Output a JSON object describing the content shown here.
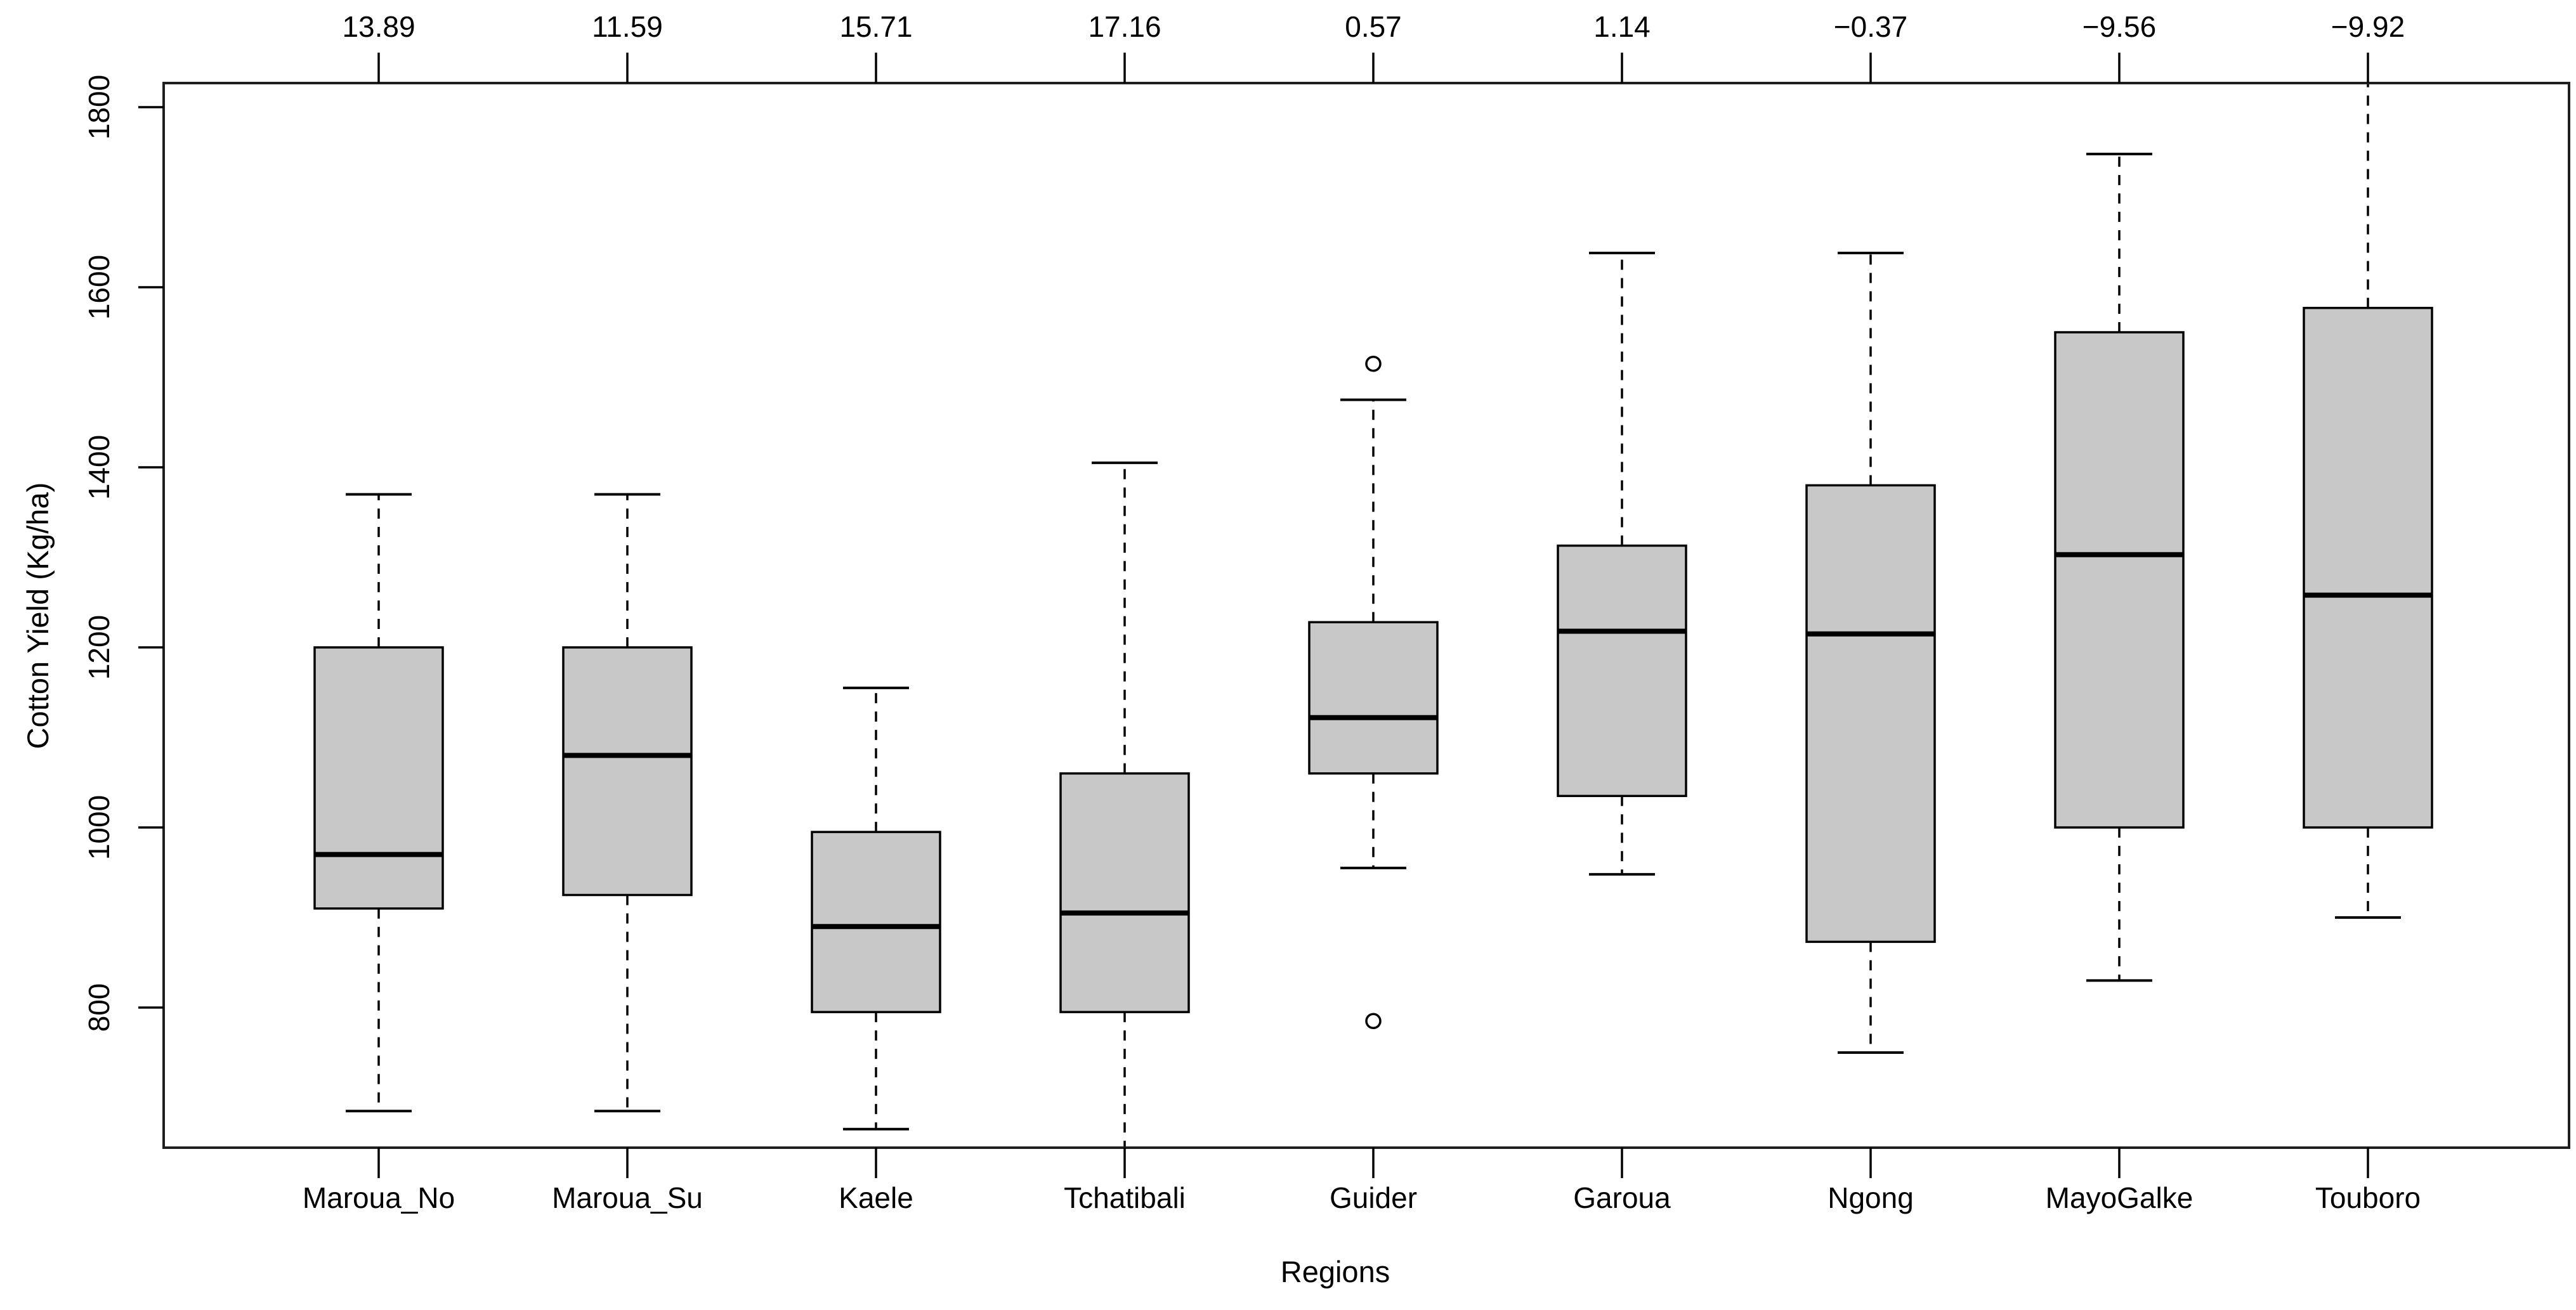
{
  "chart_data": {
    "type": "boxplot",
    "title": "",
    "xlabel": "Regions",
    "ylabel": "Cotton Yield (Kg/ha)",
    "y_axis": {
      "ticks": [
        800,
        1000,
        1200,
        1400,
        1600,
        1800
      ],
      "range_shown": [
        644,
        1827
      ],
      "grid": false
    },
    "top_axis": {
      "labels": [
        "13.89",
        "11.59",
        "15.71",
        "17.16",
        "0.57",
        "1.14",
        "−0.37",
        "−9.56",
        "−9.92"
      ]
    },
    "categories": [
      "Maroua_No",
      "Maroua_Su",
      "Kaele",
      "Tchatibali",
      "Guider",
      "Garoua",
      "Ngong",
      "MayoGalke",
      "Touboro"
    ],
    "boxes": [
      {
        "label": "Maroua_No",
        "top_value": "13.89",
        "whisker_low": 685,
        "q1": 910,
        "median": 970,
        "q3": 1200,
        "whisker_high": 1370,
        "outliers": [],
        "clip_low": false,
        "clip_high": false
      },
      {
        "label": "Maroua_Su",
        "top_value": "11.59",
        "whisker_low": 685,
        "q1": 925,
        "median": 1080,
        "q3": 1200,
        "whisker_high": 1370,
        "outliers": [],
        "clip_low": false,
        "clip_high": false
      },
      {
        "label": "Kaele",
        "top_value": "15.71",
        "whisker_low": 665,
        "q1": 795,
        "median": 890,
        "q3": 995,
        "whisker_high": 1155,
        "outliers": [],
        "clip_low": false,
        "clip_high": false
      },
      {
        "label": "Tchatibali",
        "top_value": "17.16",
        "whisker_low": 620,
        "q1": 795,
        "median": 905,
        "q3": 1060,
        "whisker_high": 1405,
        "outliers": [],
        "clip_low": true,
        "clip_high": false
      },
      {
        "label": "Guider",
        "top_value": "0.57",
        "whisker_low": 955,
        "q1": 1060,
        "median": 1122,
        "q3": 1228,
        "whisker_high": 1475,
        "outliers": [
          1515,
          785
        ],
        "clip_low": false,
        "clip_high": false
      },
      {
        "label": "Garoua",
        "top_value": "1.14",
        "whisker_low": 948,
        "q1": 1035,
        "median": 1218,
        "q3": 1313,
        "whisker_high": 1638,
        "outliers": [],
        "clip_low": false,
        "clip_high": false
      },
      {
        "label": "Ngong",
        "top_value": "−0.37",
        "whisker_low": 750,
        "q1": 873,
        "median": 1215,
        "q3": 1380,
        "whisker_high": 1638,
        "outliers": [],
        "clip_low": false,
        "clip_high": false
      },
      {
        "label": "MayoGalke",
        "top_value": "−9.56",
        "whisker_low": 830,
        "q1": 1000,
        "median": 1303,
        "q3": 1550,
        "whisker_high": 1748,
        "outliers": [],
        "clip_low": false,
        "clip_high": false
      },
      {
        "label": "Touboro",
        "top_value": "−9.92",
        "whisker_low": 900,
        "q1": 1000,
        "median": 1258,
        "q3": 1577,
        "whisker_high": 1850,
        "outliers": [],
        "clip_low": false,
        "clip_high": true
      }
    ],
    "style": {
      "box_fill": "#c8c8c8",
      "line_color": "#000000",
      "frame_color": "#1f1f1f",
      "background": "#ffffff"
    }
  }
}
